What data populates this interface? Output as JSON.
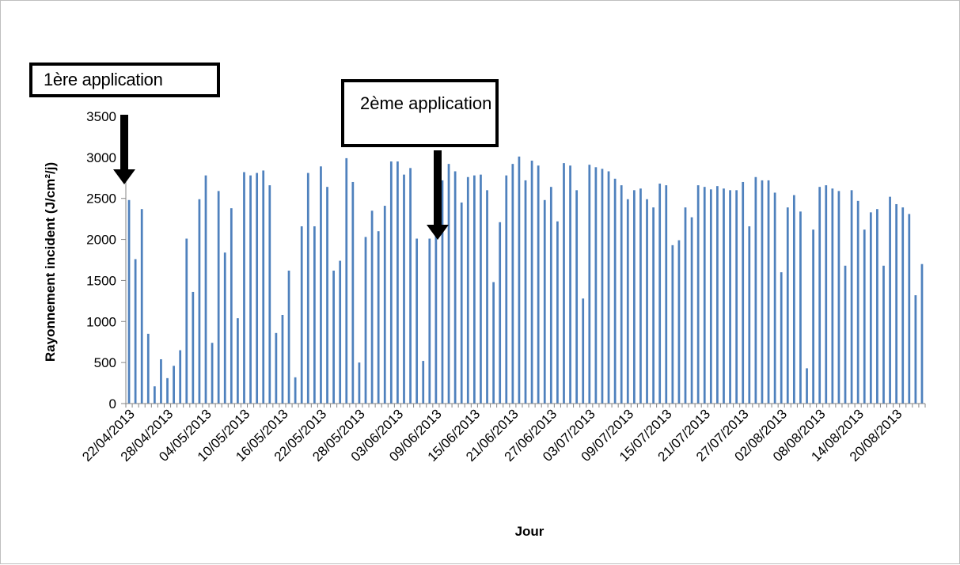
{
  "chart_data": {
    "type": "bar",
    "xlabel": "Jour",
    "ylabel": "Rayonnement incident  (J/cm²/j)",
    "ylim": [
      0,
      3500
    ],
    "yticks": [
      0,
      500,
      1000,
      1500,
      2000,
      2500,
      3000,
      3500
    ],
    "x_tick_labels": [
      "22/04/2013",
      "28/04/2013",
      "04/05/2013",
      "10/05/2013",
      "16/05/2013",
      "22/05/2013",
      "28/05/2013",
      "03/06/2013",
      "09/06/2013",
      "15/06/2013",
      "21/06/2013",
      "27/06/2013",
      "03/07/2013",
      "09/07/2013",
      "15/07/2013",
      "21/07/2013",
      "27/07/2013",
      "02/08/2013",
      "08/08/2013",
      "14/08/2013",
      "20/08/2013"
    ],
    "label_every_n_days": 6,
    "x": {
      "start": "2013-04-21",
      "end": "2013-08-25"
    },
    "bar_color": "#4f81bd",
    "grid": false,
    "values": [
      2480,
      1760,
      2370,
      850,
      210,
      540,
      310,
      460,
      650,
      2010,
      1360,
      2490,
      2780,
      740,
      2590,
      1840,
      2380,
      1040,
      2820,
      2780,
      2810,
      2840,
      2660,
      860,
      1080,
      1620,
      320,
      2160,
      2810,
      2160,
      2890,
      2640,
      1620,
      1740,
      2990,
      2700,
      500,
      2030,
      2350,
      2100,
      2410,
      2950,
      2950,
      2790,
      2870,
      2010,
      520,
      2010,
      2620,
      2720,
      2920,
      2830,
      2450,
      2760,
      2780,
      2790,
      2600,
      1480,
      2210,
      2780,
      2920,
      3010,
      2720,
      2960,
      2900,
      2480,
      2640,
      2220,
      2930,
      2900,
      2600,
      1280,
      2910,
      2880,
      2860,
      2830,
      2740,
      2660,
      2490,
      2600,
      2620,
      2490,
      2390,
      2680,
      2660,
      1930,
      1990,
      2390,
      2270,
      2660,
      2640,
      2610,
      2650,
      2620,
      2600,
      2600,
      2700,
      2160,
      2760,
      2720,
      2720,
      2570,
      1600,
      2390,
      2540,
      2340,
      430,
      2120,
      2640,
      2660,
      2620,
      2590,
      1680,
      2600,
      2470,
      2120,
      2330,
      2370,
      1680,
      2520,
      2430,
      2390,
      2310,
      1320,
      1700
    ],
    "annotations": [
      {
        "text": "1ère application",
        "arrow_at_date": "2013-04-21"
      },
      {
        "text": "2ème application",
        "arrow_at_date": "2013-06-09"
      }
    ]
  }
}
